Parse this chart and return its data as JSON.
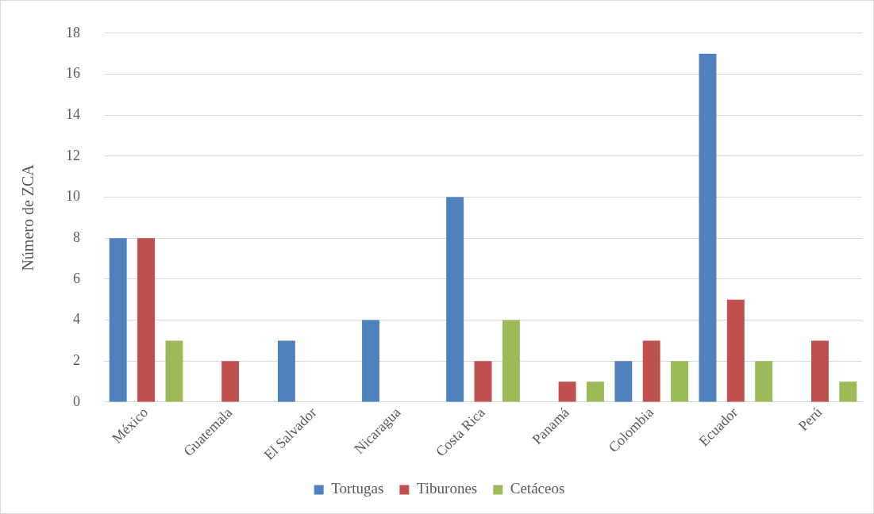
{
  "chart_data": {
    "type": "bar",
    "ylabel": "Número de ZCA",
    "categories": [
      "México",
      "Guatemala",
      "El Salvador",
      "Nicaragua",
      "Costa Rica",
      "Panamá",
      "Colombia",
      "Ecuador",
      "Perú"
    ],
    "series": [
      {
        "name": "Tortugas",
        "color": "#4f81bd",
        "values": [
          8,
          0,
          3,
          4,
          10,
          0,
          2,
          17,
          0
        ]
      },
      {
        "name": "Tiburones",
        "color": "#c0504d",
        "values": [
          8,
          2,
          0,
          0,
          2,
          1,
          3,
          5,
          3
        ]
      },
      {
        "name": "Cetáceos",
        "color": "#9bbb59",
        "values": [
          3,
          0,
          0,
          0,
          4,
          1,
          2,
          2,
          1
        ]
      }
    ],
    "ylim": [
      0,
      18
    ],
    "yticks": [
      0,
      2,
      4,
      6,
      8,
      10,
      12,
      14,
      16,
      18
    ],
    "grid": "y",
    "legend": "bottom"
  }
}
